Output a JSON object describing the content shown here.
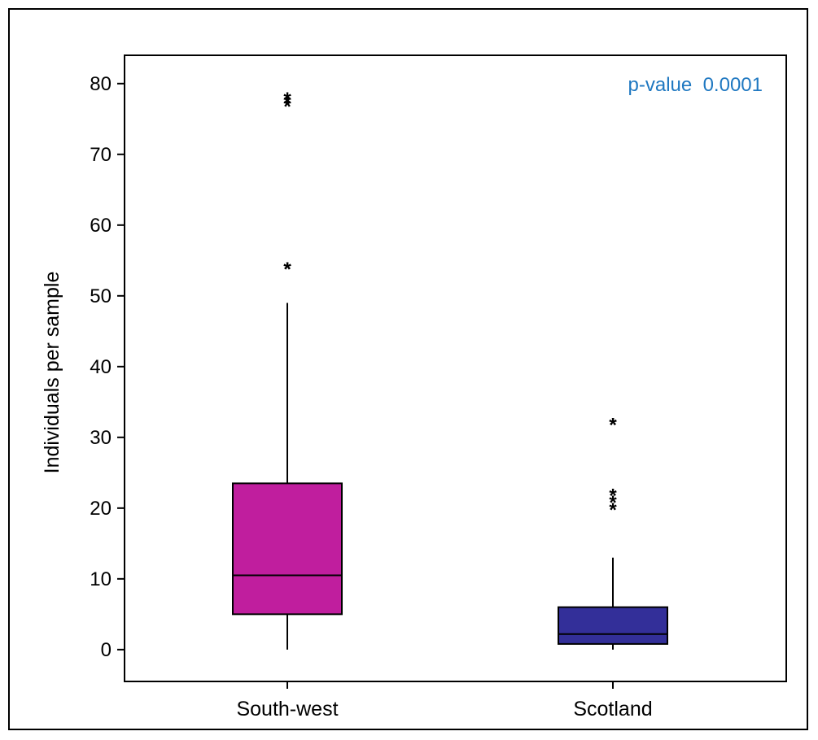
{
  "chart_data": {
    "type": "box",
    "title": "",
    "xlabel": "",
    "ylabel": "Individuals per sample",
    "ylim": [
      -4.5,
      84
    ],
    "yticks": [
      0,
      10,
      20,
      30,
      40,
      50,
      60,
      70,
      80
    ],
    "categories": [
      "South-west",
      "Scotland"
    ],
    "series": [
      {
        "category": "South-west",
        "color": "#c01e9e",
        "whisker_low": 0,
        "q1": 5,
        "median": 10.5,
        "q3": 23.5,
        "whisker_high": 49,
        "outliers": [
          54,
          54,
          77,
          77.5,
          78
        ]
      },
      {
        "category": "Scotland",
        "color": "#332f99",
        "whisker_low": 0,
        "q1": 0.8,
        "median": 2.2,
        "q3": 6,
        "whisker_high": 13,
        "outliers": [
          20,
          21,
          22,
          32,
          32
        ]
      }
    ],
    "annotation": {
      "text": "p-value  0.0001",
      "color": "#1f78c1",
      "position": "top-right"
    },
    "grid": false,
    "legend": "none"
  }
}
